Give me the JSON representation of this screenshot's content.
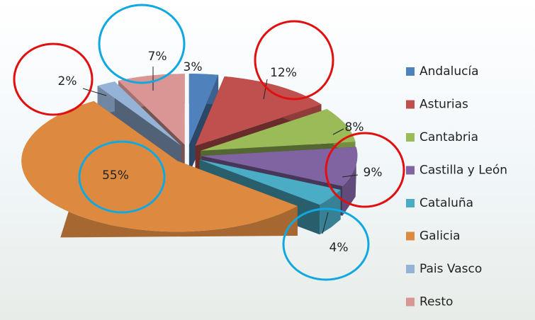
{
  "chart_data": {
    "type": "pie",
    "categories": [
      "Andalucía",
      "Asturias",
      "Cantabria",
      "Castilla y León",
      "Cataluña",
      "Galicia",
      "Pais Vasco",
      "Resto"
    ],
    "values": [
      3,
      12,
      8,
      9,
      4,
      55,
      2,
      7
    ],
    "value_labels": [
      "3%",
      "12%",
      "8%",
      "9%",
      "4%",
      "55%",
      "2%",
      "7%"
    ],
    "colors": [
      "#4f81bd",
      "#c0504d",
      "#9bbb59",
      "#8064a2",
      "#4bacc6",
      "#dd8a40",
      "#95b3d7",
      "#d99694"
    ],
    "legend": "right"
  }
}
